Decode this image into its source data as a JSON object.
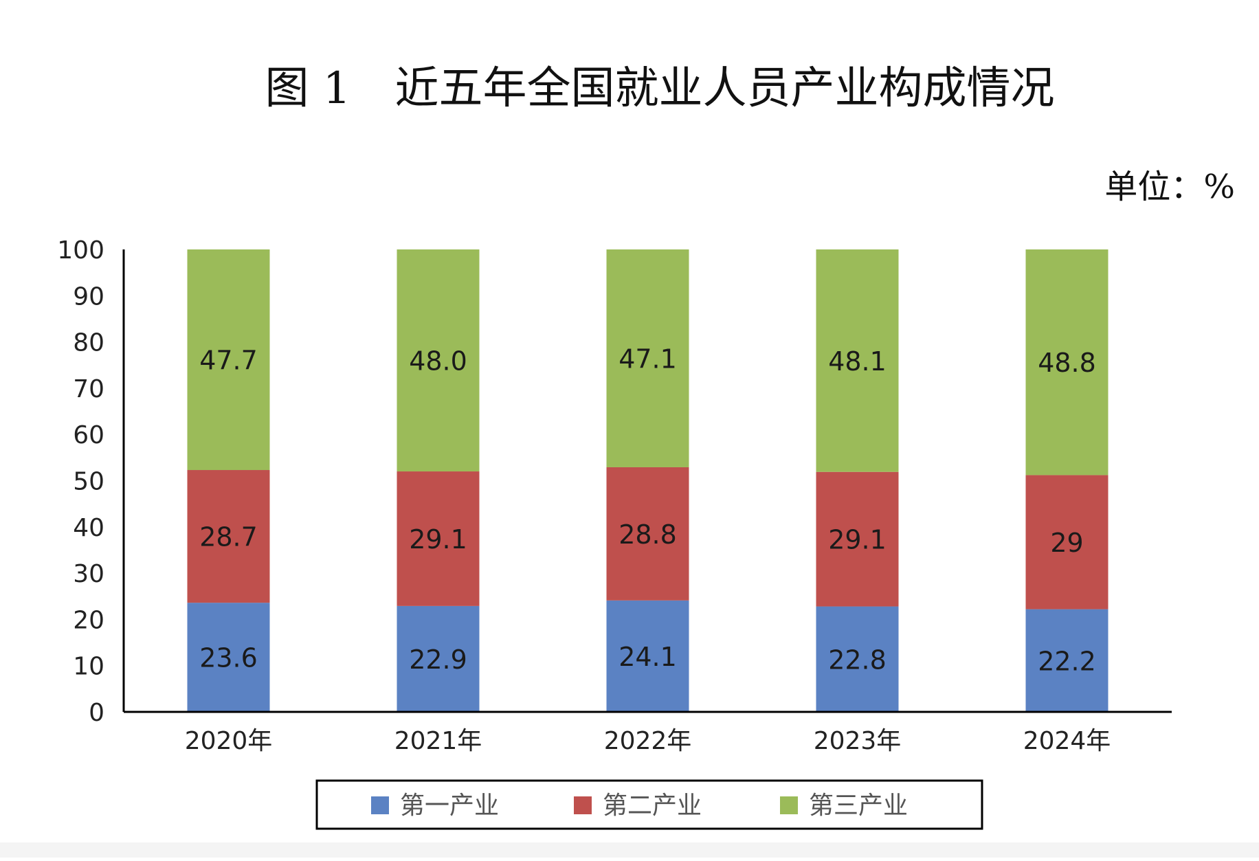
{
  "chart_data": {
    "type": "bar",
    "stacked": true,
    "title": "图 1　近五年全国就业人员产业构成情况",
    "unit_label": "单位：%",
    "categories": [
      "2020年",
      "2021年",
      "2022年",
      "2023年",
      "2024年"
    ],
    "series": [
      {
        "name": "第一产业",
        "color": "#5b82c3",
        "values": [
          23.6,
          22.9,
          24.1,
          22.8,
          22.2
        ],
        "labels": [
          "23.6",
          "22.9",
          "24.1",
          "22.8",
          "22.2"
        ]
      },
      {
        "name": "第二产业",
        "color": "#bf504d",
        "values": [
          28.7,
          29.1,
          28.8,
          29.1,
          29
        ],
        "labels": [
          "28.7",
          "29.1",
          "28.8",
          "29.1",
          "29"
        ]
      },
      {
        "name": "第三产业",
        "color": "#9bbb59",
        "values": [
          47.7,
          48.0,
          47.1,
          48.1,
          48.8
        ],
        "labels": [
          "47.7",
          "48.0",
          "47.1",
          "48.1",
          "48.8"
        ]
      }
    ],
    "ylim": [
      0,
      100
    ],
    "yticks": [
      0,
      10,
      20,
      30,
      40,
      50,
      60,
      70,
      80,
      90,
      100
    ],
    "grid": false,
    "legend_position": "bottom"
  }
}
